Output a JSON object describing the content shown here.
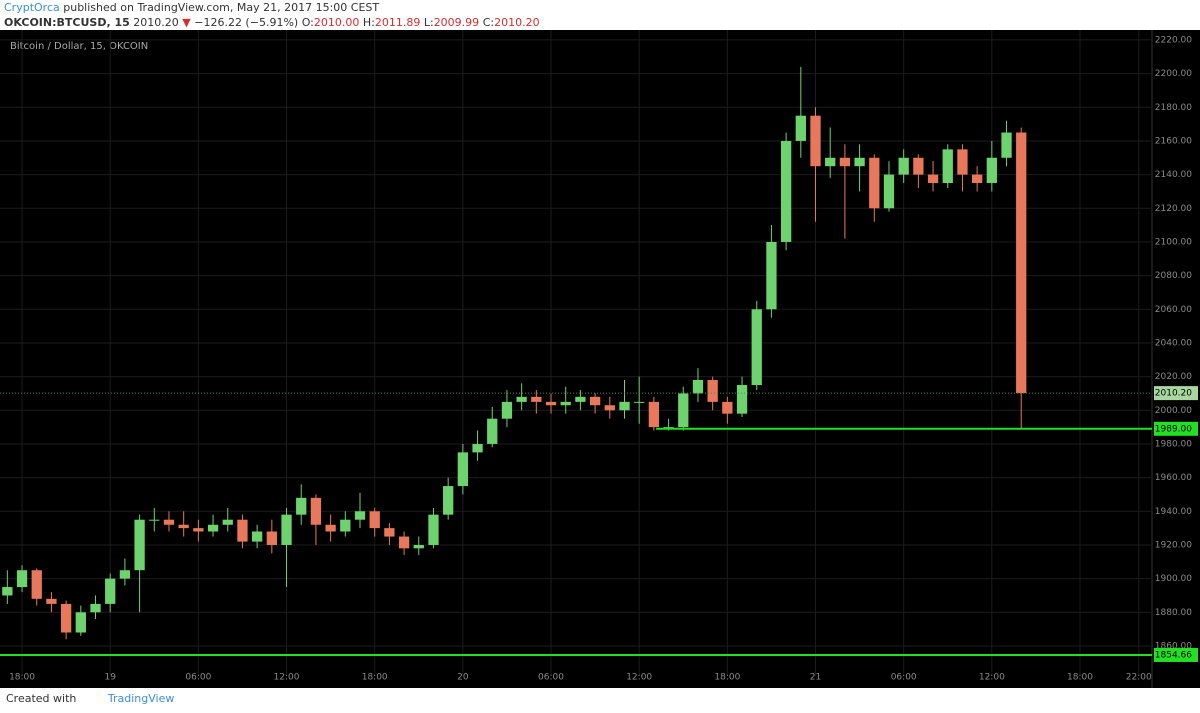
{
  "header": {
    "author": "CryptOrca",
    "published": "published on TradingView.com, May 21, 2017 15:00 CEST",
    "symbol": "OKCOIN:BTCUSD, 15",
    "last": "2010.20",
    "arrow": "▼",
    "change": "−126.22 (−5.91%)",
    "ohlc": [
      {
        "key": "O:",
        "value": "2010.00"
      },
      {
        "key": "H:",
        "value": "2011.89"
      },
      {
        "key": "L:",
        "value": "2009.99"
      },
      {
        "key": "C:",
        "value": "2010.20"
      }
    ]
  },
  "footer": {
    "created": "Created with",
    "brand": "TradingView"
  },
  "chart_data": {
    "type": "candlestick",
    "title": "Bitcoin / Dollar, 15, OKCOIN",
    "up_color": "#6ed36e",
    "down_color": "#e8785c",
    "grid": true,
    "x": [
      17,
      18,
      19,
      20,
      21,
      22,
      23,
      24,
      25,
      26,
      27,
      28,
      29,
      30,
      31,
      32,
      33,
      34,
      35,
      36,
      37,
      38,
      39,
      40,
      41,
      42,
      43,
      44,
      45,
      46,
      47,
      48,
      49,
      50,
      51,
      52,
      53,
      54,
      55,
      56,
      57,
      58,
      59,
      60,
      61,
      62,
      63,
      64,
      65,
      66,
      67,
      68,
      69,
      70,
      71,
      72,
      73,
      74,
      75,
      76,
      77,
      78,
      79,
      80,
      81,
      82,
      83,
      84,
      85,
      86
    ],
    "open": [
      1890,
      1895,
      1905,
      1888,
      1885,
      1868,
      1880,
      1885,
      1900,
      1905,
      1935,
      1935,
      1932,
      1930,
      1928,
      1932,
      1935,
      1922,
      1928,
      1920,
      1938,
      1948,
      1932,
      1928,
      1935,
      1940,
      1930,
      1925,
      1918,
      1920,
      1938,
      1955,
      1975,
      1980,
      1995,
      2005,
      2008,
      2005,
      2003,
      2005,
      2008,
      2003,
      2000,
      2005,
      2005,
      1990,
      1990,
      2010,
      2018,
      2005,
      1998,
      2015,
      2060,
      2100,
      2160,
      2175,
      2145,
      2150,
      2145,
      2150,
      2120,
      2140,
      2150,
      2140,
      2135,
      2155,
      2140,
      2135,
      2150,
      2165
    ],
    "high": [
      1905,
      1908,
      1906,
      1892,
      1887,
      1884,
      1890,
      1903,
      1912,
      1938,
      1942,
      1940,
      1940,
      1935,
      1938,
      1942,
      1938,
      1932,
      1935,
      1942,
      1956,
      1950,
      1938,
      1940,
      1951,
      1942,
      1933,
      1928,
      1925,
      1942,
      1960,
      1980,
      1988,
      2002,
      2012,
      2016,
      2012,
      2010,
      2014,
      2012,
      2010,
      2008,
      2018,
      2020,
      2008,
      1995,
      2014,
      2025,
      2020,
      2008,
      2020,
      2065,
      2110,
      2165,
      2204,
      2180,
      2168,
      2158,
      2158,
      2152,
      2148,
      2155,
      2152,
      2148,
      2158,
      2158,
      2145,
      2160,
      2172,
      2168
    ],
    "low": [
      1885,
      1892,
      1884,
      1880,
      1864,
      1866,
      1876,
      1880,
      1896,
      1880,
      1928,
      1928,
      1925,
      1922,
      1925,
      1928,
      1918,
      1918,
      1915,
      1895,
      1932,
      1920,
      1922,
      1925,
      1930,
      1925,
      1920,
      1914,
      1914,
      1918,
      1935,
      1950,
      1970,
      1978,
      1990,
      2000,
      1998,
      1998,
      1998,
      2000,
      1998,
      1995,
      1995,
      1992,
      1988,
      1988,
      1988,
      2005,
      2000,
      1992,
      1996,
      2012,
      2055,
      2095,
      2150,
      2112,
      2138,
      2102,
      2130,
      2112,
      2118,
      2135,
      2132,
      2130,
      2132,
      2130,
      2130,
      2130,
      2145,
      1989
    ],
    "close": [
      1895,
      1905,
      1888,
      1885,
      1868,
      1880,
      1885,
      1900,
      1905,
      1935,
      1935,
      1932,
      1930,
      1928,
      1932,
      1935,
      1922,
      1928,
      1920,
      1938,
      1948,
      1932,
      1928,
      1935,
      1940,
      1930,
      1925,
      1918,
      1920,
      1938,
      1955,
      1975,
      1980,
      1995,
      2005,
      2008,
      2005,
      2003,
      2005,
      2008,
      2003,
      2000,
      2005,
      2005,
      1990,
      1990,
      2010,
      2018,
      2005,
      1998,
      2015,
      2060,
      2100,
      2160,
      2175,
      2145,
      2150,
      2145,
      2150,
      2120,
      2140,
      2150,
      2140,
      2135,
      2155,
      2140,
      2135,
      2150,
      2165,
      2010.2
    ],
    "xlim": [
      16.5,
      94.9
    ],
    "ylim": [
      1848.1,
      2225.9
    ],
    "xticks": [
      {
        "value": 18,
        "label": "18:00"
      },
      {
        "value": 24,
        "label": "19"
      },
      {
        "value": 30,
        "label": "06:00"
      },
      {
        "value": 36,
        "label": "12:00"
      },
      {
        "value": 42,
        "label": "18:00"
      },
      {
        "value": 48,
        "label": "20"
      },
      {
        "value": 54,
        "label": "06:00"
      },
      {
        "value": 60,
        "label": "12:00"
      },
      {
        "value": 66,
        "label": "18:00"
      },
      {
        "value": 72,
        "label": "21"
      },
      {
        "value": 78,
        "label": "06:00"
      },
      {
        "value": 84,
        "label": "12:00"
      },
      {
        "value": 90,
        "label": "18:00"
      },
      {
        "value": 94,
        "label": "22:00"
      }
    ],
    "yticks": [
      {
        "value": 1860,
        "label": "1860.00"
      },
      {
        "value": 1880,
        "label": "1880.00"
      },
      {
        "value": 1900,
        "label": "1900.00"
      },
      {
        "value": 1920,
        "label": "1920.00"
      },
      {
        "value": 1940,
        "label": "1940.00"
      },
      {
        "value": 1960,
        "label": "1960.00"
      },
      {
        "value": 1980,
        "label": "1980.00"
      },
      {
        "value": 2000,
        "label": "2000.00"
      },
      {
        "value": 2020,
        "label": "2020.00"
      },
      {
        "value": 2040,
        "label": "2040.00"
      },
      {
        "value": 2060,
        "label": "2060.00"
      },
      {
        "value": 2080,
        "label": "2080.00"
      },
      {
        "value": 2100,
        "label": "2100.00"
      },
      {
        "value": 2120,
        "label": "2120.00"
      },
      {
        "value": 2140,
        "label": "2140.00"
      },
      {
        "value": 2160,
        "label": "2160.00"
      },
      {
        "value": 2180,
        "label": "2180.00"
      },
      {
        "value": 2200,
        "label": "2200.00"
      },
      {
        "value": 2220,
        "label": "2220.00"
      }
    ],
    "last_price": {
      "value": 2010.2,
      "label": "2010.20"
    },
    "levels": [
      {
        "value": 1989,
        "label": "1989.00",
        "x_start": 61.15,
        "color": "#22e022"
      },
      {
        "value": 1854.66,
        "label": "1854.66",
        "x_start": 16.5,
        "color": "#22e022"
      }
    ]
  }
}
